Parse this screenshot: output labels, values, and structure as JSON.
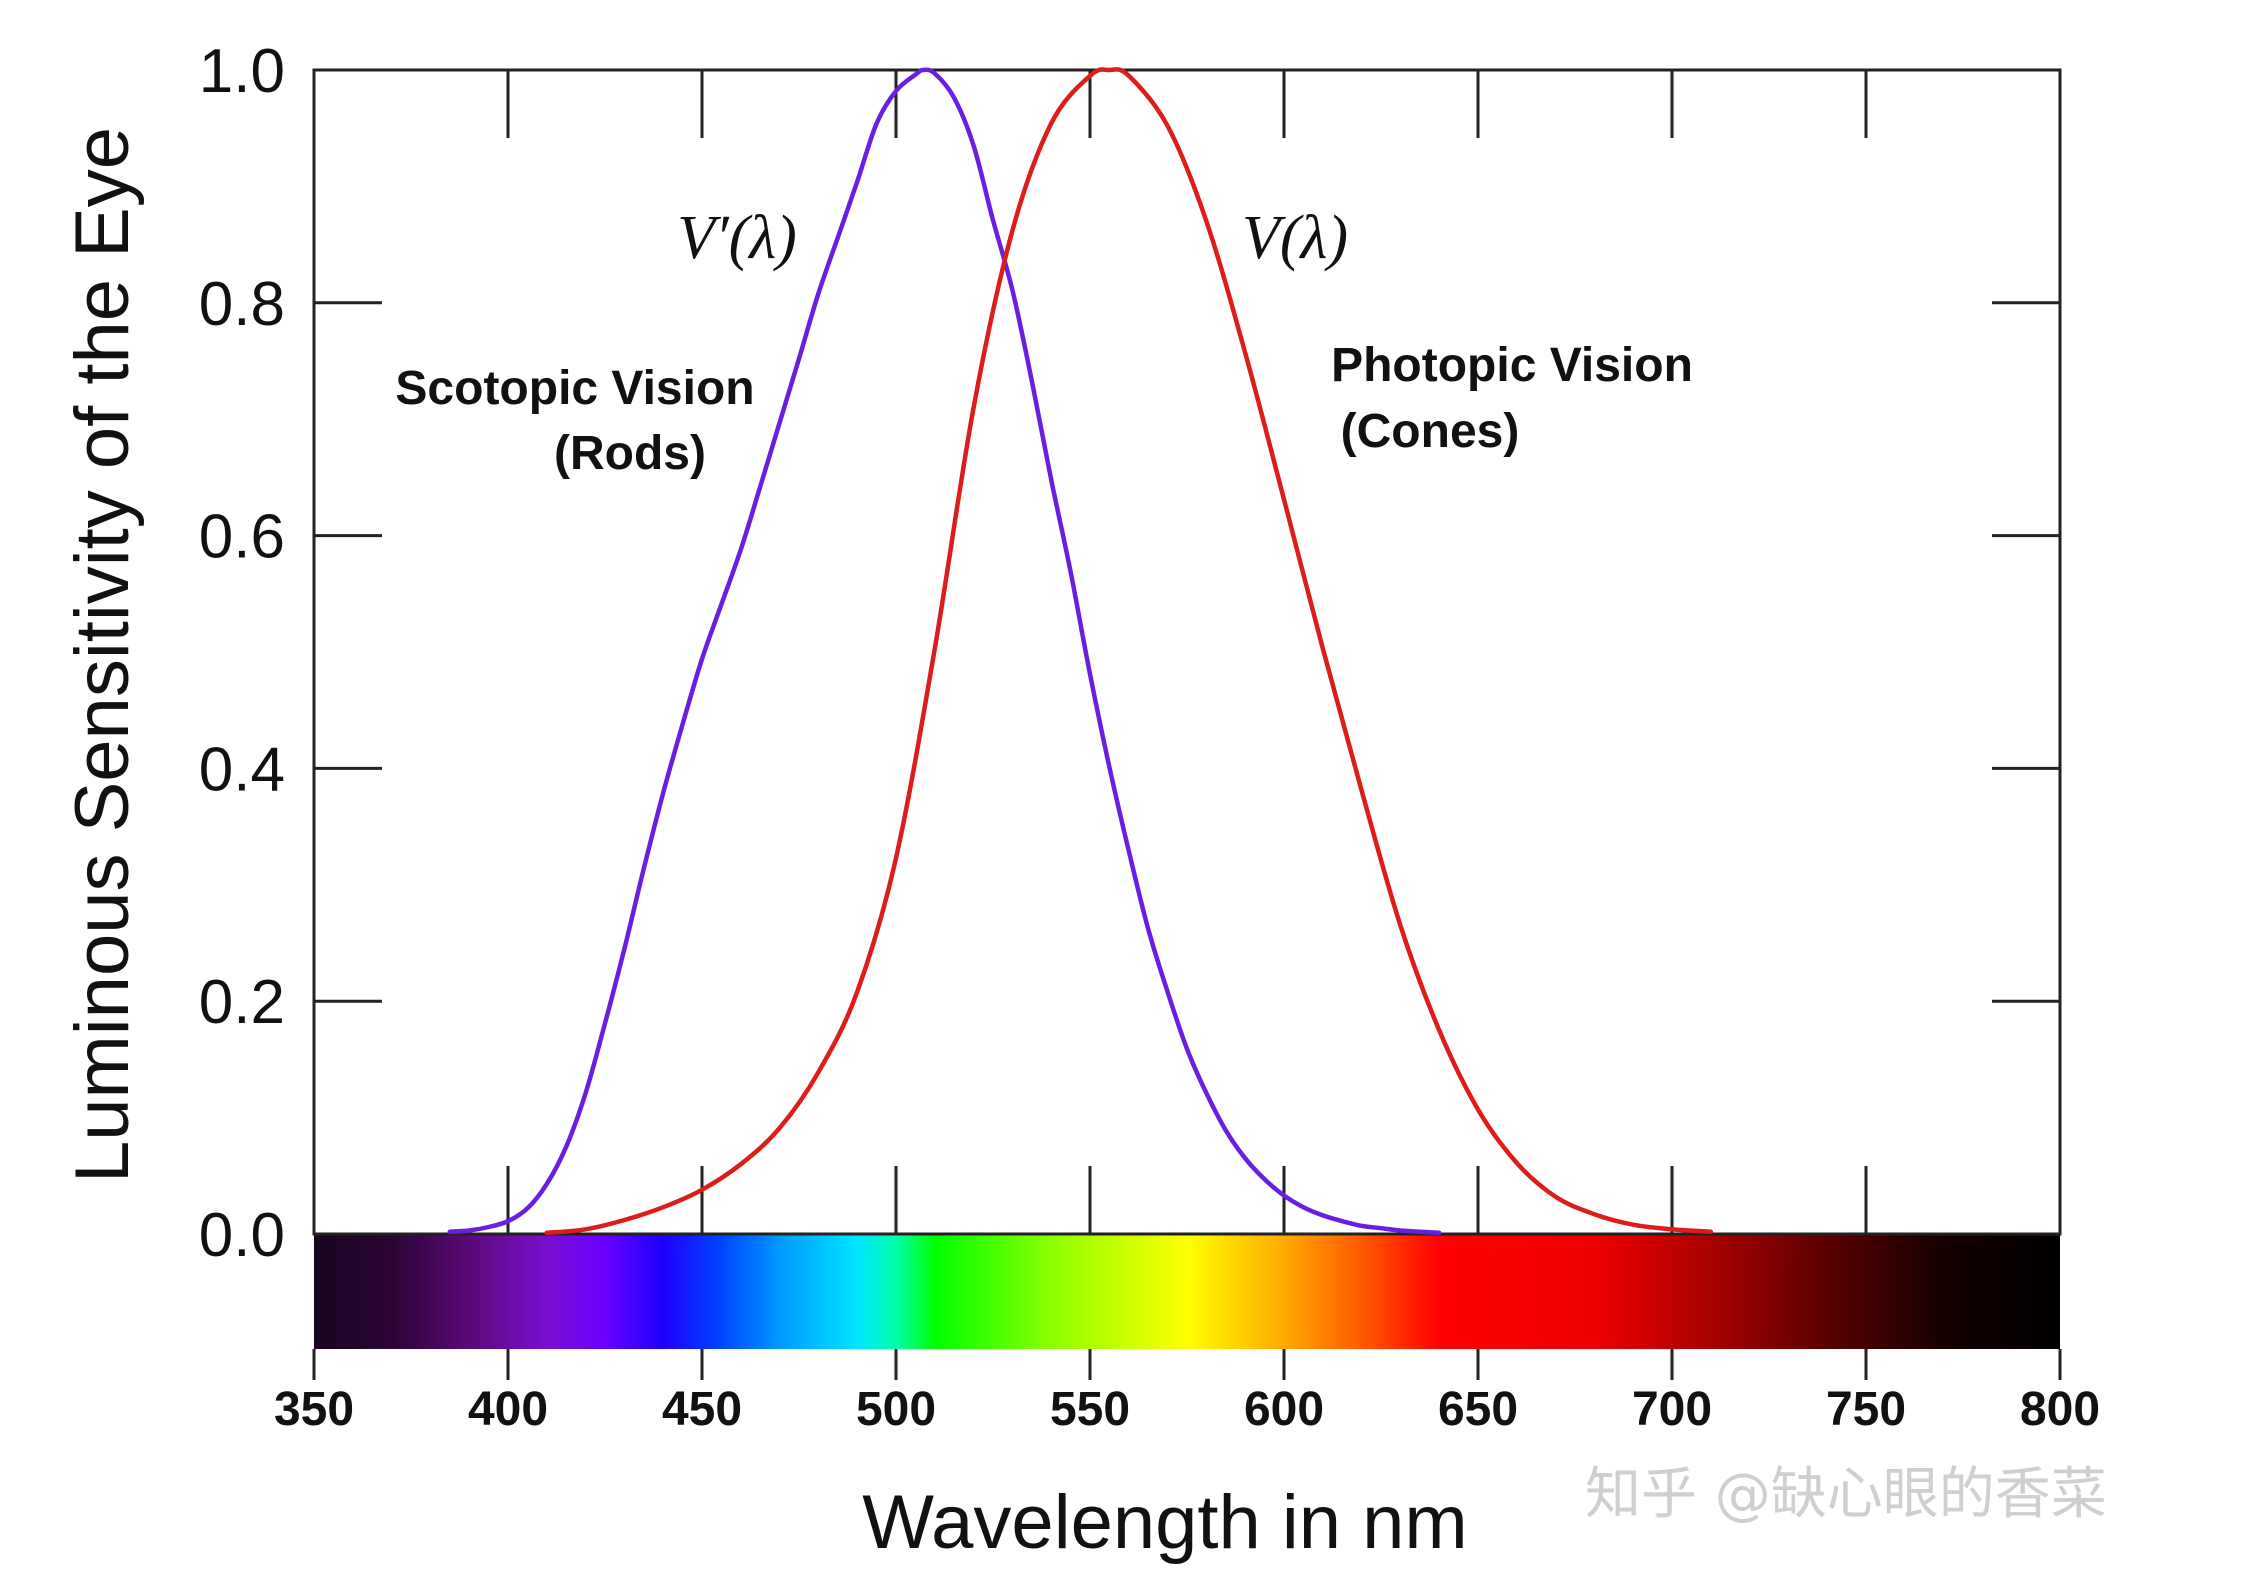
{
  "chart_data": {
    "type": "line",
    "title": "",
    "xlabel": "Wavelength in nm",
    "ylabel": "Luminous Sensitivity of the Eye",
    "xlim": [
      350,
      800
    ],
    "ylim": [
      0,
      1.0
    ],
    "x_ticks": [
      "350",
      "400",
      "450",
      "500",
      "550",
      "600",
      "650",
      "700",
      "750",
      "800"
    ],
    "y_ticks": [
      "0.0",
      "0.2",
      "0.4",
      "0.6",
      "0.8",
      "1.0"
    ],
    "grid": false,
    "series": [
      {
        "name": "Scotopic Vision (Rods)",
        "symbol": "V′(λ)",
        "color": "#6a1fe0",
        "x": [
          385,
          390,
          395,
          400,
          405,
          410,
          415,
          420,
          425,
          430,
          435,
          440,
          445,
          450,
          455,
          460,
          465,
          470,
          475,
          480,
          485,
          490,
          495,
          500,
          505,
          507,
          510,
          515,
          520,
          525,
          530,
          535,
          540,
          545,
          550,
          555,
          560,
          565,
          570,
          575,
          580,
          585,
          590,
          595,
          600,
          605,
          610,
          615,
          620,
          625,
          630,
          635,
          640
        ],
        "y": [
          0.002,
          0.003,
          0.006,
          0.011,
          0.022,
          0.043,
          0.075,
          0.121,
          0.181,
          0.245,
          0.314,
          0.379,
          0.438,
          0.494,
          0.541,
          0.588,
          0.642,
          0.697,
          0.752,
          0.808,
          0.856,
          0.904,
          0.954,
          0.982,
          0.996,
          1.0,
          0.997,
          0.976,
          0.935,
          0.871,
          0.811,
          0.733,
          0.648,
          0.569,
          0.481,
          0.401,
          0.329,
          0.262,
          0.208,
          0.159,
          0.121,
          0.089,
          0.065,
          0.047,
          0.033,
          0.023,
          0.016,
          0.011,
          0.007,
          0.005,
          0.003,
          0.002,
          0.001
        ]
      },
      {
        "name": "Photopic Vision (Cones)",
        "symbol": "V(λ)",
        "color": "#dd1c1c",
        "x": [
          410,
          420,
          430,
          440,
          450,
          460,
          470,
          480,
          490,
          500,
          510,
          520,
          530,
          540,
          550,
          555,
          560,
          570,
          580,
          590,
          600,
          610,
          620,
          630,
          640,
          650,
          660,
          670,
          680,
          690,
          700,
          710
        ],
        "y": [
          0.001,
          0.004,
          0.012,
          0.023,
          0.038,
          0.06,
          0.091,
          0.139,
          0.208,
          0.323,
          0.503,
          0.71,
          0.862,
          0.954,
          0.995,
          1.0,
          0.995,
          0.952,
          0.87,
          0.757,
          0.631,
          0.503,
          0.381,
          0.265,
          0.175,
          0.107,
          0.061,
          0.032,
          0.017,
          0.008,
          0.004,
          0.002
        ]
      }
    ],
    "annotations": {
      "scotopic_line1": "Scotopic Vision",
      "scotopic_line2": "(Rods)",
      "photopic_line1": "Photopic Vision",
      "photopic_line2": "(Cones)",
      "scotopic_symbol": "V′(λ)",
      "photopic_symbol": "V(λ)"
    },
    "spectrum_band": {
      "range": [
        350,
        800
      ],
      "stops": [
        {
          "nm": 350,
          "color": "#1a0520"
        },
        {
          "nm": 370,
          "color": "#2a0533"
        },
        {
          "nm": 390,
          "color": "#5a0a78"
        },
        {
          "nm": 410,
          "color": "#7a0fd0"
        },
        {
          "nm": 425,
          "color": "#6a00ff"
        },
        {
          "nm": 440,
          "color": "#1c00ff"
        },
        {
          "nm": 455,
          "color": "#0044ff"
        },
        {
          "nm": 470,
          "color": "#0099ff"
        },
        {
          "nm": 490,
          "color": "#00e5ff"
        },
        {
          "nm": 500,
          "color": "#00ffaa"
        },
        {
          "nm": 510,
          "color": "#00ff00"
        },
        {
          "nm": 540,
          "color": "#8cff00"
        },
        {
          "nm": 575,
          "color": "#ffff00"
        },
        {
          "nm": 600,
          "color": "#ffaa00"
        },
        {
          "nm": 625,
          "color": "#ff4400"
        },
        {
          "nm": 640,
          "color": "#ff0000"
        },
        {
          "nm": 680,
          "color": "#ee0000"
        },
        {
          "nm": 710,
          "color": "#a80000"
        },
        {
          "nm": 740,
          "color": "#5a0000"
        },
        {
          "nm": 770,
          "color": "#150000"
        },
        {
          "nm": 800,
          "color": "#000000"
        }
      ]
    }
  },
  "watermark": "知乎 @缺心眼的香菜"
}
